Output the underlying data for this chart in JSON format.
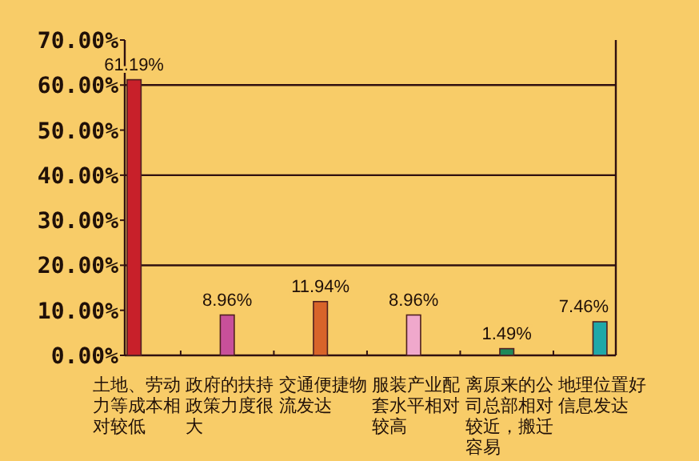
{
  "chart_data": {
    "type": "bar",
    "categories": [
      "土地、劳动力等成本相对较低",
      "政府的扶持政策力度很大",
      "交通便捷物流发达",
      "服装产业配套水平相对较高",
      "离原来的公司总部相对较近，搬迁容易",
      "地理位置好信息发达"
    ],
    "values": [
      61.19,
      8.96,
      11.94,
      8.96,
      1.49,
      7.46
    ],
    "colors": [
      "#c8202a",
      "#c8509a",
      "#d8642a",
      "#f0a8cc",
      "#20885a",
      "#20a8a8"
    ],
    "value_labels": [
      "61.19%",
      "8.96%",
      "11.94%",
      "8.96%",
      "1.49%",
      "7.46%"
    ],
    "ylim": [
      0,
      70
    ],
    "yticks": [
      {
        "value": 0,
        "label": "0.00%"
      },
      {
        "value": 10,
        "label": "10.00%"
      },
      {
        "value": 20,
        "label": "20.00%"
      },
      {
        "value": 30,
        "label": "30.00%"
      },
      {
        "value": 40,
        "label": "40.00%"
      },
      {
        "value": 50,
        "label": "50.00%"
      },
      {
        "value": 60,
        "label": "60.00%"
      },
      {
        "value": 70,
        "label": "70.00%"
      }
    ],
    "ref_lines": [
      {
        "axis": "y",
        "value": 20,
        "color": "#301010"
      },
      {
        "axis": "y",
        "value": 40,
        "color": "#301010"
      },
      {
        "axis": "y",
        "value": 60,
        "color": "#301010"
      }
    ]
  }
}
